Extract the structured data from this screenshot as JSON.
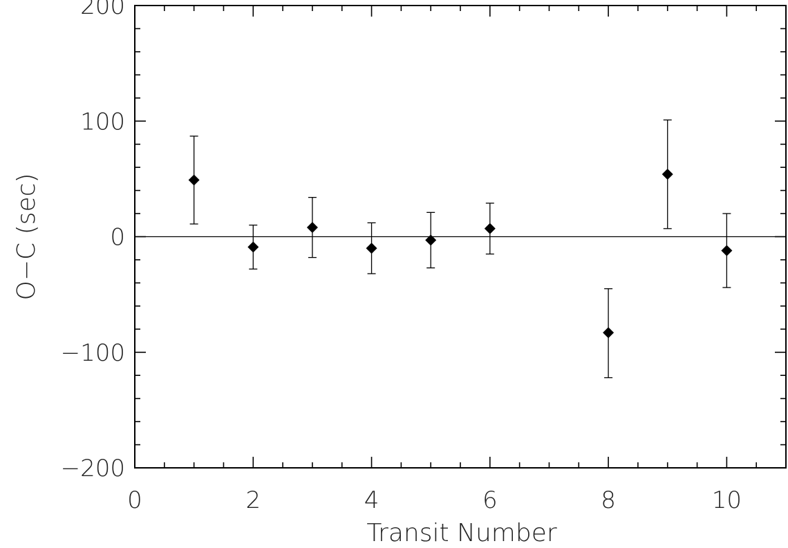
{
  "chart_data": {
    "type": "scatter",
    "title": "",
    "xlabel": "Transit Number",
    "ylabel": "O−C (sec)",
    "xlim": [
      0,
      11
    ],
    "ylim": [
      -200,
      200
    ],
    "x_ticks": [
      0,
      2,
      4,
      6,
      8,
      10
    ],
    "x_tick_labels": [
      "0",
      "2",
      "4",
      "6",
      "8",
      "10"
    ],
    "x_minor_step": 0.5,
    "y_ticks": [
      -200,
      -100,
      0,
      100,
      200
    ],
    "y_tick_labels": [
      "−200",
      "−100",
      "0",
      "100",
      "200"
    ],
    "y_minor_step": 20,
    "reference_line_y": 0,
    "marker": "diamond",
    "grid": false,
    "points": [
      {
        "x": 1,
        "y": 49,
        "err_low": 38,
        "err_high": 38
      },
      {
        "x": 2,
        "y": -9,
        "err_low": 19,
        "err_high": 19
      },
      {
        "x": 3,
        "y": 8,
        "err_low": 26,
        "err_high": 26
      },
      {
        "x": 4,
        "y": -10,
        "err_low": 22,
        "err_high": 22
      },
      {
        "x": 5,
        "y": -3,
        "err_low": 24,
        "err_high": 24
      },
      {
        "x": 6,
        "y": 7,
        "err_low": 22,
        "err_high": 22
      },
      {
        "x": 8,
        "y": -83,
        "err_low": 39,
        "err_high": 38
      },
      {
        "x": 9,
        "y": 54,
        "err_low": 47,
        "err_high": 47
      },
      {
        "x": 10,
        "y": -12,
        "err_low": 32,
        "err_high": 32
      }
    ]
  }
}
